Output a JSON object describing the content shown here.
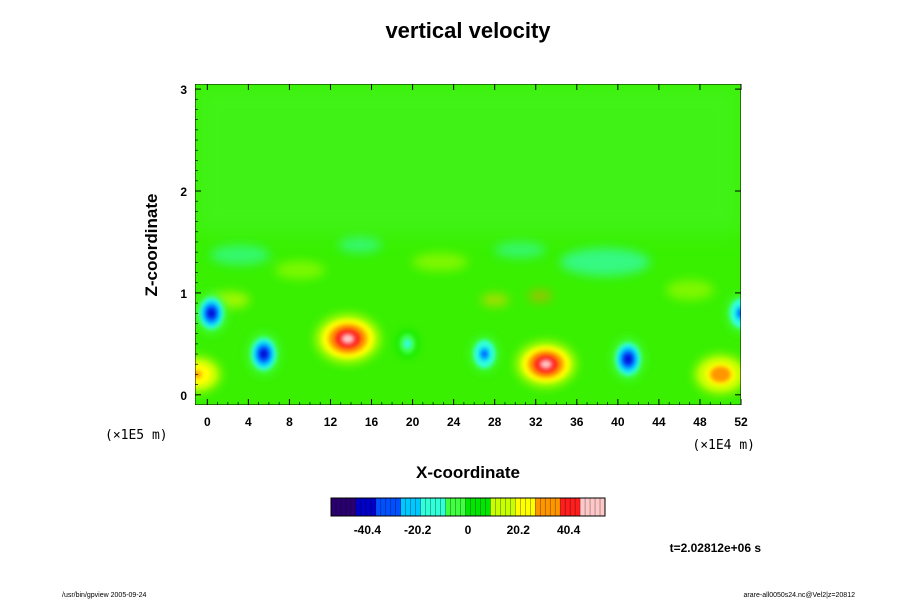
{
  "chart_data": {
    "type": "heatmap",
    "title": "vertical velocity",
    "xlabel": "X-coordinate",
    "ylabel": "Z-coordinate",
    "x_ticks": [
      "0",
      "4",
      "8",
      "12",
      "16",
      "20",
      "24",
      "28",
      "32",
      "36",
      "40",
      "44",
      "48",
      "52"
    ],
    "y_ticks": [
      "0",
      "1",
      "2",
      "3"
    ],
    "xlim": [
      -1.2,
      52
    ],
    "ylim": [
      -0.1,
      3.05
    ],
    "x_scale_note": "(×1E4 m)",
    "y_scale_note": "(×1E5 m)",
    "colorbar_ticks": [
      "-40.4",
      "-20.2",
      "0",
      "20.2",
      "40.4"
    ],
    "colorbar_range": [
      -55,
      55
    ],
    "colormap": [
      "#2a0070",
      "#0000c8",
      "#0050ff",
      "#00c8ff",
      "#30ffd8",
      "#40ff40",
      "#00e600",
      "#c8ff00",
      "#ffff00",
      "#ff9600",
      "#ff1e1e",
      "#ffc8c8"
    ],
    "background_value": 4,
    "features": [
      {
        "x": 13.7,
        "z": 0.55,
        "value": 52
      },
      {
        "x": 33,
        "z": 0.3,
        "value": 46
      },
      {
        "x": 50,
        "z": 0.2,
        "value": 36
      },
      {
        "x": -1,
        "z": 0.2,
        "value": 30
      },
      {
        "x": 5.5,
        "z": 0.4,
        "value": -40
      },
      {
        "x": 41,
        "z": 0.35,
        "value": -40
      },
      {
        "x": 27,
        "z": 0.4,
        "value": -30
      },
      {
        "x": 19.5,
        "z": 0.5,
        "value": -14
      },
      {
        "x": 0.4,
        "z": 0.8,
        "value": -38
      },
      {
        "x": 52,
        "z": 0.8,
        "value": -32
      }
    ],
    "time_label": "t=2.02812e+06 s"
  },
  "footer": {
    "left": "/usr/bin/gpview 2005-09-24",
    "right": "arare-all0050s24.nc@Vel2|z=20812"
  }
}
